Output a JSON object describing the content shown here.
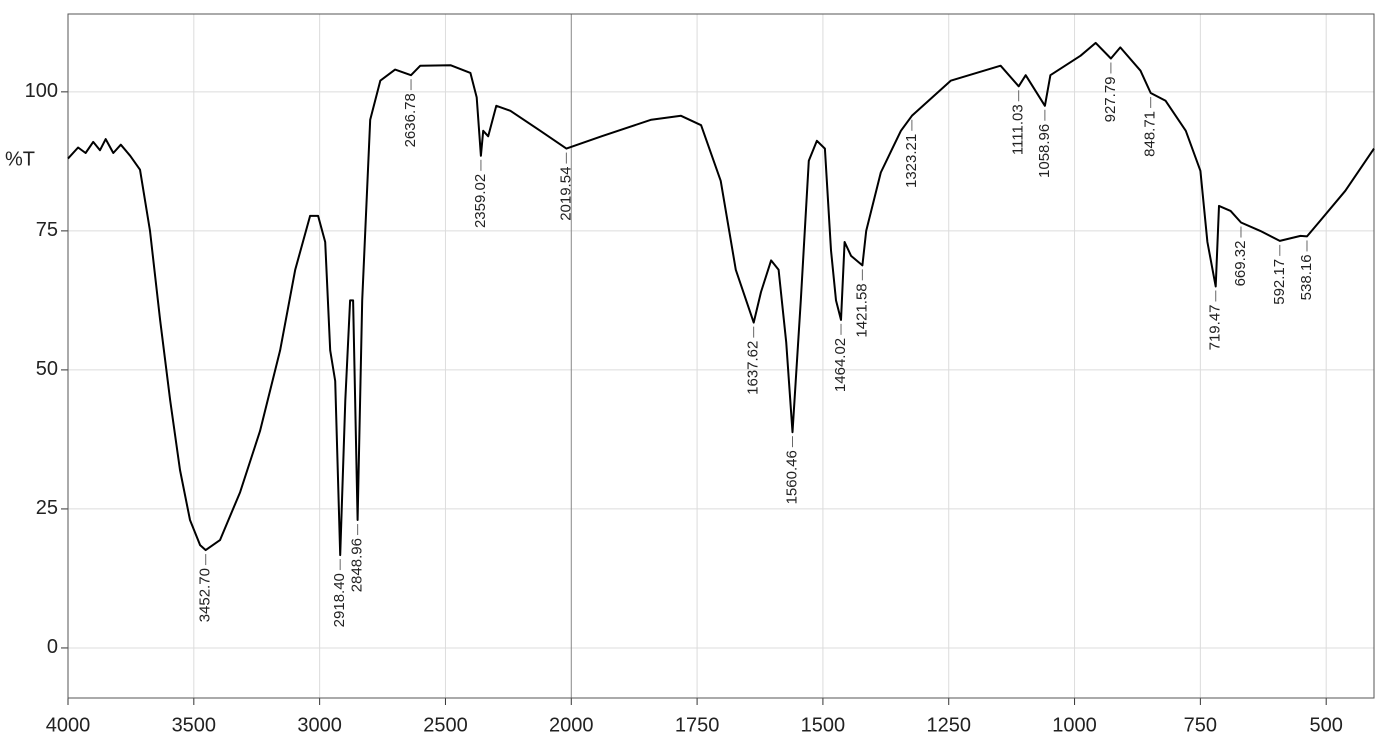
{
  "chart_data": {
    "type": "line",
    "ylabel": "%T",
    "color": "#000000",
    "grid": true,
    "xlim": [
      4000,
      405
    ],
    "x_scale_break": {
      "value": 2000,
      "factor": 2
    },
    "ylim": [
      -9,
      114
    ],
    "xticks": [
      4000,
      3500,
      3000,
      2500,
      2000,
      1750,
      1500,
      1250,
      1000,
      750,
      500
    ],
    "yticks": [
      0,
      25,
      50,
      75,
      100
    ],
    "x": [
      4000,
      3960,
      3930,
      3900,
      3873,
      3850,
      3820,
      3790,
      3753,
      3714,
      3674,
      3634,
      3594,
      3555,
      3515,
      3475,
      3452.7,
      3396,
      3316,
      3237,
      3157,
      3097,
      3038,
      3006,
      2978,
      2958,
      2938,
      2918.4,
      2898,
      2879,
      2867,
      2848.96,
      2831,
      2799,
      2759,
      2700,
      2636.78,
      2600,
      2480,
      2401,
      2376,
      2359.02,
      2350,
      2330,
      2298,
      2242,
      2123,
      2019.54,
      1940,
      1841,
      1782,
      1742,
      1703,
      1673,
      1637.62,
      1623,
      1603,
      1588,
      1573,
      1560.46,
      1544,
      1528,
      1512,
      1496,
      1484,
      1474,
      1464.02,
      1457,
      1444,
      1421.58,
      1414,
      1385,
      1345,
      1323.21,
      1246,
      1147,
      1111.03,
      1097,
      1058.96,
      1048,
      988,
      958,
      927.79,
      909,
      869,
      848.71,
      819,
      779,
      750,
      736,
      719.47,
      713,
      690,
      669.32,
      631,
      592.17,
      551,
      538.16,
      512,
      462,
      405
    ],
    "values": [
      88,
      90,
      89,
      91,
      89.5,
      91.5,
      89,
      90.5,
      88.5,
      86,
      75,
      59,
      44.5,
      32,
      23,
      18.5,
      17.6,
      19.4,
      28,
      39,
      53.5,
      68,
      77.7,
      77.7,
      73,
      53.5,
      48,
      16.7,
      44.5,
      62.5,
      62.5,
      23,
      62.5,
      95,
      102,
      104,
      103,
      104.7,
      104.8,
      103.4,
      99,
      88.5,
      93,
      92,
      97.5,
      96.6,
      93,
      89.8,
      92,
      95,
      95.7,
      94,
      84,
      68,
      58.5,
      64,
      69.7,
      68,
      55,
      38.8,
      62.5,
      87.6,
      91.2,
      89.8,
      71.5,
      62.5,
      59,
      73,
      70.5,
      68.8,
      75,
      85.5,
      93,
      95.7,
      102,
      104.7,
      101,
      103,
      97.5,
      103,
      106.5,
      108.8,
      106,
      108,
      103.8,
      99.8,
      98.4,
      93,
      85.8,
      73,
      65,
      79.5,
      78.6,
      76.5,
      75,
      73.2,
      74.1,
      74,
      76.8,
      82.2,
      89.8
    ],
    "annotations": [
      {
        "value": 3452.7,
        "label": "3452.70"
      },
      {
        "value": 2918.4,
        "label": "2918.40"
      },
      {
        "value": 2848.96,
        "label": "2848.96"
      },
      {
        "value": 2636.78,
        "label": "2636.78"
      },
      {
        "value": 2359.02,
        "label": "2359.02"
      },
      {
        "value": 2019.54,
        "label": "2019.54"
      },
      {
        "value": 1637.62,
        "label": "1637.62"
      },
      {
        "value": 1560.46,
        "label": "1560.46"
      },
      {
        "value": 1464.02,
        "label": "1464.02"
      },
      {
        "value": 1421.58,
        "label": "1421.58"
      },
      {
        "value": 1323.21,
        "label": "1323.21"
      },
      {
        "value": 1111.03,
        "label": "1111.03"
      },
      {
        "value": 1058.96,
        "label": "1058.96"
      },
      {
        "value": 927.79,
        "label": "927.79"
      },
      {
        "value": 848.71,
        "label": "848.71"
      },
      {
        "value": 719.47,
        "label": "719.47"
      },
      {
        "value": 669.32,
        "label": "669.32"
      },
      {
        "value": 592.17,
        "label": "592.17"
      },
      {
        "value": 538.16,
        "label": "538.16"
      }
    ]
  }
}
